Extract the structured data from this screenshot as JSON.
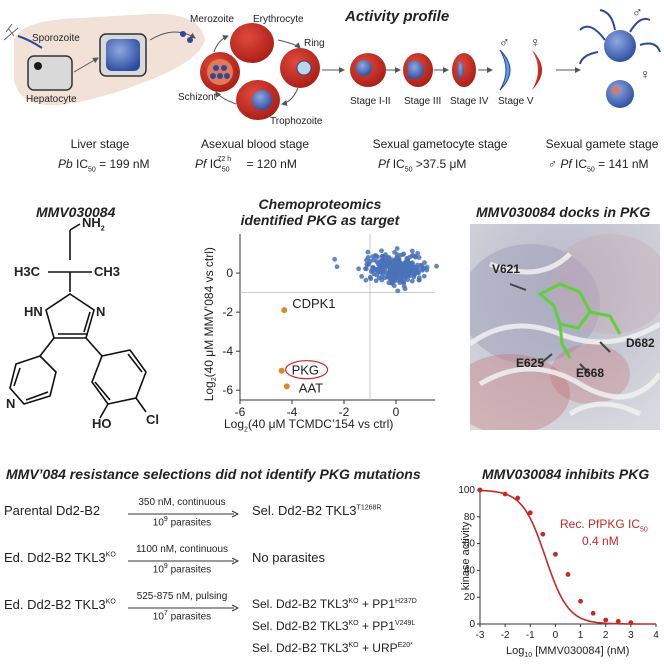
{
  "top": {
    "title": "Activity profile",
    "labels": {
      "sporozoite": "Sporozoite",
      "hepatocyte": "Hepatocyte",
      "merozoite": "Merozoite",
      "erythrocyte": "Erythrocyte",
      "ring": "Ring",
      "schizont": "Schizont",
      "trophozoite": "Trophozoite",
      "stage_i_ii": "Stage I-II",
      "stage_iii": "Stage III",
      "stage_iv": "Stage IV",
      "stage_v": "Stage V",
      "male": "♂",
      "female": "♀"
    },
    "stages": [
      {
        "name": "Liver stage",
        "species": "Pb",
        "metric": "IC",
        "sub": "50",
        "sup": "",
        "value": " = 199 nM"
      },
      {
        "name": "Asexual blood stage",
        "species": "Pf",
        "metric": "IC",
        "sub": "50",
        "sup": "72 h",
        "value": " = 120 nM"
      },
      {
        "name": "Sexual gametocyte stage",
        "species": "Pf",
        "metric": "IC",
        "sub": "50",
        "sup": "",
        "value": " >37.5 μM"
      },
      {
        "name": "Sexual gamete stage",
        "prefix": "♂",
        "species": "Pf",
        "metric": "IC",
        "sub": "50",
        "sup": "",
        "value": " = 141 nM"
      }
    ]
  },
  "compound": {
    "title": "MMV030084",
    "atoms": {
      "nh2": "NH",
      "nh2_sub": "2",
      "ch3_left": "H3C",
      "ch3_right": "CH3",
      "hn": "HN",
      "n_imid": "N",
      "n_pyr": "N",
      "ho": "HO",
      "cl": "Cl"
    }
  },
  "chemo": {
    "title_line1": "Chemoproteomics",
    "title_line2": "identified PKG as target",
    "xlabel_pre": "Log",
    "xlabel_sub": "2",
    "xlabel_post": "(40 μM TCMDC’154 vs ctrl)",
    "ylabel_pre": "Log",
    "ylabel_sub": "2",
    "ylabel_post": "(40 μM MMV’084 vs ctrl)",
    "x_ticks": [
      "-6",
      "-4",
      "-2",
      "0"
    ],
    "y_ticks": [
      "0",
      "-2",
      "-4",
      "-6"
    ],
    "annotations": [
      "CDPK1",
      "PKG",
      "AAT"
    ],
    "chart_data": {
      "type": "scatter",
      "xlim": [
        -6,
        1.5
      ],
      "ylim": [
        -6.5,
        2
      ],
      "hits": [
        {
          "label": "CDPK1",
          "x": -4.3,
          "y": -1.9
        },
        {
          "label": "PKG",
          "x": -4.4,
          "y": -5.0
        },
        {
          "label": "AAT",
          "x": -4.2,
          "y": -5.8
        }
      ],
      "background_cluster": {
        "x_center": 0,
        "y_center": 0,
        "x_spread": 0.9,
        "y_spread": 0.8,
        "n": 300
      }
    }
  },
  "dock": {
    "title": "MMV030084 docks in PKG",
    "residues": [
      "V621",
      "D682",
      "E625",
      "E668"
    ]
  },
  "resistance": {
    "title": "MMV’084 resistance selections did not identify PKG mutations",
    "rows": [
      {
        "parent": "Parental Dd2-B2",
        "parent_sup": "",
        "cond_top": "350 nM, continuous",
        "cond_bot_pre": "10",
        "cond_bot_sup": "9",
        "cond_bot_post": " parasites",
        "results": [
          {
            "text": "Sel. Dd2-B2 TKL3",
            "sup": "T1268R",
            "extra": "",
            "extra_sup": ""
          }
        ]
      },
      {
        "parent": "Ed. Dd2-B2 TKL3",
        "parent_sup": "KO",
        "cond_top": "1100 nM, continuous",
        "cond_bot_pre": "10",
        "cond_bot_sup": "9",
        "cond_bot_post": " parasites",
        "results": [
          {
            "text": "No parasites",
            "sup": "",
            "extra": "",
            "extra_sup": ""
          }
        ]
      },
      {
        "parent": "Ed. Dd2-B2 TKL3",
        "parent_sup": "KO",
        "cond_top": "525-875 nM, pulsing",
        "cond_bot_pre": "10",
        "cond_bot_sup": "7",
        "cond_bot_post": " parasites",
        "results": [
          {
            "text": "Sel. Dd2-B2 TKL3",
            "sup": "KO",
            "extra": " + PP1",
            "extra_sup": "H237D"
          },
          {
            "text": "Sel. Dd2-B2 TKL3",
            "sup": "KO",
            "extra": " + PP1",
            "extra_sup": "V249L"
          },
          {
            "text": "Sel. Dd2-B2 TKL3",
            "sup": "KO",
            "extra": " + URP",
            "extra_sup": "E20*"
          }
        ]
      }
    ]
  },
  "inhibit": {
    "title": "MMV030084 inhibits PKG",
    "ylabel": "kinase activity",
    "xlabel_pre": "Log",
    "xlabel_sub": "10",
    "xlabel_post": " [MMV030084] (nM)",
    "legend_line1_pre": "Rec. PfPKG IC",
    "legend_line1_sub": "50",
    "legend_line2": "0.4 nM",
    "x_ticks": [
      "-3",
      "-2",
      "-1",
      "0",
      "1",
      "2",
      "3",
      "4"
    ],
    "y_ticks": [
      "100",
      "80",
      "60",
      "40",
      "20",
      "0"
    ],
    "colors": {
      "curve": "#c62828"
    },
    "chart_data": {
      "type": "line",
      "xlim": [
        -3,
        4
      ],
      "ylim": [
        0,
        100
      ],
      "points": [
        {
          "x": -3,
          "y": 100
        },
        {
          "x": -2,
          "y": 97
        },
        {
          "x": -1.5,
          "y": 94
        },
        {
          "x": -1,
          "y": 83
        },
        {
          "x": -0.5,
          "y": 67
        },
        {
          "x": 0,
          "y": 52
        },
        {
          "x": 0.5,
          "y": 37
        },
        {
          "x": 1,
          "y": 17
        },
        {
          "x": 1.5,
          "y": 8
        },
        {
          "x": 2,
          "y": 3
        },
        {
          "x": 2.5,
          "y": 2
        },
        {
          "x": 3,
          "y": 1
        }
      ],
      "ic50_log": -0.4
    }
  }
}
